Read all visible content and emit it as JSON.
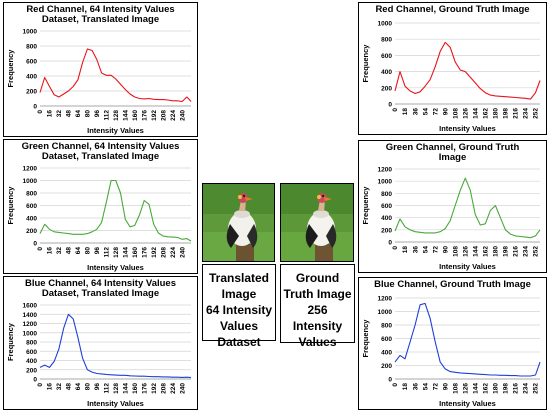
{
  "chart_data": [
    {
      "type": "line",
      "title_lines": [
        "Red Channel, 64 Intensity Values",
        "Dataset, Translated Image"
      ],
      "xlabel": "Intensity Values",
      "ylabel": "Frequency",
      "color": "#e8141a",
      "xlim": [
        0,
        255
      ],
      "ylim": [
        0,
        1000
      ],
      "yticks": [
        "0",
        "200",
        "400",
        "600",
        "800",
        "1000"
      ],
      "xticks": [
        "0",
        "16",
        "32",
        "48",
        "64",
        "80",
        "96",
        "112",
        "128",
        "144",
        "160",
        "176",
        "192",
        "208",
        "224",
        "240"
      ],
      "series": [
        {
          "x": [
            0,
            8,
            16,
            24,
            32,
            40,
            48,
            56,
            64,
            72,
            80,
            88,
            96,
            104,
            112,
            120,
            128,
            136,
            144,
            152,
            160,
            168,
            176,
            184,
            192,
            200,
            208,
            216,
            224,
            232,
            240,
            248,
            255
          ],
          "y": [
            180,
            380,
            260,
            150,
            120,
            160,
            200,
            260,
            350,
            580,
            760,
            740,
            620,
            440,
            410,
            410,
            360,
            290,
            220,
            160,
            120,
            100,
            95,
            100,
            90,
            85,
            85,
            80,
            70,
            70,
            60,
            120,
            60
          ]
        }
      ]
    },
    {
      "type": "line",
      "title_lines": [
        "Green Channel, 64 Intensity Values",
        "Dataset, Translated Image"
      ],
      "xlabel": "Intensity Values",
      "ylabel": "Frequency",
      "color": "#4aa83a",
      "xlim": [
        0,
        255
      ],
      "ylim": [
        0,
        1200
      ],
      "yticks": [
        "0",
        "200",
        "400",
        "600",
        "800",
        "1000",
        "1200"
      ],
      "xticks": [
        "0",
        "16",
        "32",
        "48",
        "64",
        "80",
        "96",
        "112",
        "128",
        "144",
        "160",
        "176",
        "192",
        "208",
        "224",
        "240"
      ],
      "series": [
        {
          "x": [
            0,
            8,
            16,
            24,
            32,
            40,
            48,
            56,
            64,
            72,
            80,
            88,
            96,
            104,
            112,
            120,
            128,
            136,
            144,
            152,
            160,
            168,
            176,
            184,
            192,
            200,
            208,
            216,
            224,
            232,
            240,
            248,
            255
          ],
          "y": [
            150,
            300,
            220,
            180,
            170,
            160,
            150,
            140,
            140,
            140,
            150,
            180,
            220,
            330,
            650,
            1000,
            1000,
            800,
            380,
            260,
            280,
            450,
            680,
            620,
            300,
            160,
            110,
            100,
            95,
            90,
            60,
            70,
            30
          ]
        }
      ]
    },
    {
      "type": "line",
      "title_lines": [
        "Blue Channel, 64 Intensity Values",
        "Dataset, Translated Image"
      ],
      "xlabel": "Intensity Values",
      "ylabel": "Frequency",
      "color": "#1f3fd8",
      "xlim": [
        0,
        255
      ],
      "ylim": [
        0,
        1600
      ],
      "yticks": [
        "0",
        "200",
        "400",
        "600",
        "800",
        "1000",
        "1200",
        "1400",
        "1600"
      ],
      "xticks": [
        "0",
        "16",
        "32",
        "48",
        "64",
        "80",
        "96",
        "112",
        "128",
        "144",
        "160",
        "176",
        "192",
        "208",
        "224",
        "240"
      ],
      "series": [
        {
          "x": [
            0,
            8,
            16,
            24,
            32,
            40,
            48,
            56,
            64,
            72,
            80,
            88,
            96,
            104,
            112,
            120,
            128,
            136,
            144,
            152,
            160,
            168,
            176,
            184,
            192,
            200,
            208,
            216,
            224,
            232,
            240,
            248,
            255
          ],
          "y": [
            250,
            300,
            250,
            380,
            650,
            1100,
            1400,
            1300,
            900,
            450,
            200,
            150,
            120,
            110,
            100,
            90,
            85,
            80,
            80,
            70,
            65,
            60,
            60,
            55,
            50,
            50,
            45,
            45,
            40,
            40,
            35,
            40,
            30
          ]
        }
      ]
    },
    {
      "type": "line",
      "title_lines": [
        "Red Channel, Ground Truth Image"
      ],
      "xlabel": "Intensity Values",
      "ylabel": "Frequency",
      "color": "#e8141a",
      "xlim": [
        0,
        260
      ],
      "ylim": [
        0,
        1000
      ],
      "yticks": [
        "0",
        "200",
        "400",
        "600",
        "800",
        "1000"
      ],
      "xticks": [
        "0",
        "18",
        "36",
        "54",
        "72",
        "90",
        "108",
        "126",
        "144",
        "162",
        "180",
        "198",
        "216",
        "234",
        "252"
      ],
      "series": [
        {
          "x": [
            0,
            9,
            18,
            27,
            36,
            45,
            54,
            63,
            72,
            81,
            90,
            99,
            108,
            117,
            126,
            135,
            144,
            153,
            162,
            171,
            180,
            189,
            198,
            207,
            216,
            225,
            234,
            243,
            252,
            260
          ],
          "y": [
            160,
            400,
            220,
            160,
            130,
            150,
            220,
            300,
            460,
            650,
            760,
            700,
            520,
            420,
            400,
            330,
            260,
            190,
            140,
            110,
            100,
            95,
            90,
            85,
            80,
            75,
            70,
            60,
            140,
            290
          ]
        }
      ]
    },
    {
      "type": "line",
      "title_lines": [
        "Green Channel, Ground Truth",
        "Image"
      ],
      "xlabel": "Intensity Values",
      "ylabel": "Frequency",
      "color": "#4aa83a",
      "xlim": [
        0,
        260
      ],
      "ylim": [
        0,
        1200
      ],
      "yticks": [
        "0",
        "200",
        "400",
        "600",
        "800",
        "1000",
        "1200"
      ],
      "xticks": [
        "0",
        "18",
        "36",
        "54",
        "72",
        "90",
        "108",
        "126",
        "144",
        "162",
        "180",
        "198",
        "216",
        "234",
        "252"
      ],
      "series": [
        {
          "x": [
            0,
            9,
            18,
            27,
            36,
            45,
            54,
            63,
            72,
            81,
            90,
            99,
            108,
            117,
            126,
            135,
            144,
            153,
            162,
            171,
            180,
            189,
            198,
            207,
            216,
            225,
            234,
            243,
            252,
            260
          ],
          "y": [
            180,
            380,
            250,
            200,
            170,
            160,
            150,
            150,
            150,
            170,
            220,
            350,
            600,
            850,
            1050,
            850,
            450,
            280,
            300,
            520,
            600,
            400,
            200,
            130,
            100,
            90,
            80,
            70,
            100,
            200
          ]
        }
      ]
    },
    {
      "type": "line",
      "title_lines": [
        "Blue Channel, Ground Truth Image"
      ],
      "xlabel": "Intensity Values",
      "ylabel": "Frequency",
      "color": "#1f3fd8",
      "xlim": [
        0,
        260
      ],
      "ylim": [
        0,
        1200
      ],
      "yticks": [
        "0",
        "200",
        "400",
        "600",
        "800",
        "1000",
        "1200"
      ],
      "xticks": [
        "0",
        "18",
        "36",
        "54",
        "72",
        "90",
        "108",
        "126",
        "144",
        "162",
        "180",
        "198",
        "216",
        "234",
        "252"
      ],
      "series": [
        {
          "x": [
            0,
            9,
            18,
            27,
            36,
            45,
            54,
            63,
            72,
            81,
            90,
            99,
            108,
            117,
            126,
            135,
            144,
            153,
            162,
            171,
            180,
            189,
            198,
            207,
            216,
            225,
            234,
            243,
            252,
            260
          ],
          "y": [
            250,
            350,
            300,
            550,
            800,
            1100,
            1120,
            900,
            550,
            250,
            150,
            110,
            100,
            90,
            85,
            80,
            75,
            70,
            65,
            60,
            60,
            55,
            55,
            50,
            50,
            45,
            45,
            45,
            60,
            250
          ]
        }
      ]
    }
  ],
  "captions": {
    "translated": [
      "Translated",
      "Image",
      "64 Intensity",
      "Values",
      "Dataset"
    ],
    "ground_truth": [
      "Ground",
      "Truth Image",
      "256",
      "Intensity",
      "Values"
    ]
  },
  "photos": {
    "translated": "bird-photo-translated",
    "ground_truth": "bird-photo-ground-truth"
  },
  "colors": {
    "red": "#e8141a",
    "green": "#4aa83a",
    "blue": "#1f3fd8",
    "grass": "#3f6e25",
    "bird_white": "#f2f1ec"
  }
}
